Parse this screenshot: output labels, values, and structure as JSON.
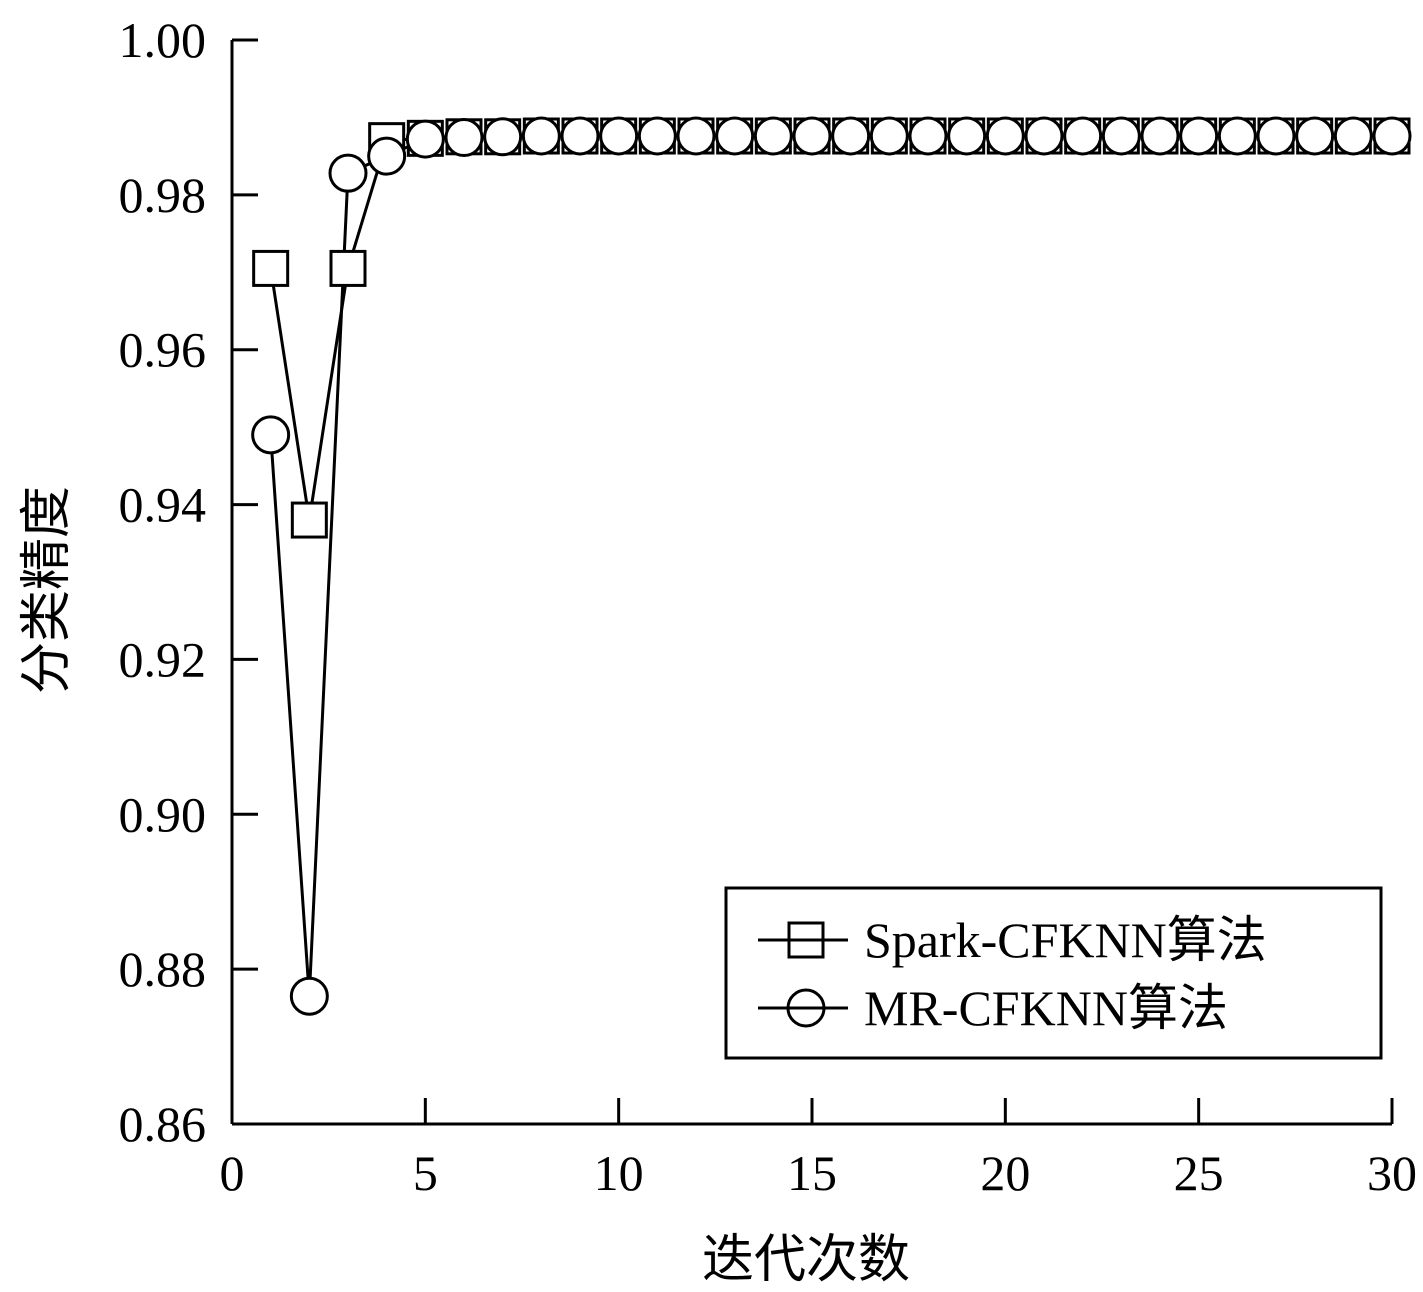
{
  "chart_data": {
    "type": "line",
    "xlabel": "迭代次数",
    "ylabel": "分类精度",
    "xlim": [
      0,
      30
    ],
    "ylim": [
      0.86,
      1.0
    ],
    "x_ticks": [
      "0",
      "5",
      "10",
      "15",
      "20",
      "25",
      "30"
    ],
    "y_ticks": [
      "0.86",
      "0.88",
      "0.90",
      "0.92",
      "0.94",
      "0.96",
      "0.98",
      "1.00"
    ],
    "grid": false,
    "legend_position": "bottom-right",
    "x": [
      1,
      2,
      3,
      4,
      5,
      6,
      7,
      8,
      9,
      10,
      11,
      12,
      13,
      14,
      15,
      16,
      17,
      18,
      19,
      20,
      21,
      22,
      23,
      24,
      25,
      26,
      27,
      28,
      29,
      30
    ],
    "series": [
      {
        "name": "Spark-CFKNN算法",
        "marker": "square",
        "values": [
          0.9705,
          0.938,
          0.9705,
          0.987,
          0.9873,
          0.9875,
          0.9875,
          0.9876,
          0.9876,
          0.9876,
          0.9876,
          0.9876,
          0.9876,
          0.9876,
          0.9876,
          0.9876,
          0.9876,
          0.9876,
          0.9876,
          0.9876,
          0.9876,
          0.9876,
          0.9876,
          0.9876,
          0.9876,
          0.9876,
          0.9876,
          0.9876,
          0.9876,
          0.9876
        ]
      },
      {
        "name": "MR-CFKNN算法",
        "marker": "circle",
        "values": [
          0.949,
          0.8765,
          0.9828,
          0.985,
          0.9872,
          0.9874,
          0.9875,
          0.9876,
          0.9876,
          0.9876,
          0.9876,
          0.9876,
          0.9876,
          0.9876,
          0.9876,
          0.9876,
          0.9876,
          0.9876,
          0.9876,
          0.9876,
          0.9876,
          0.9876,
          0.9876,
          0.9876,
          0.9876,
          0.9876,
          0.9876,
          0.9876,
          0.9876,
          0.9876
        ]
      }
    ]
  }
}
